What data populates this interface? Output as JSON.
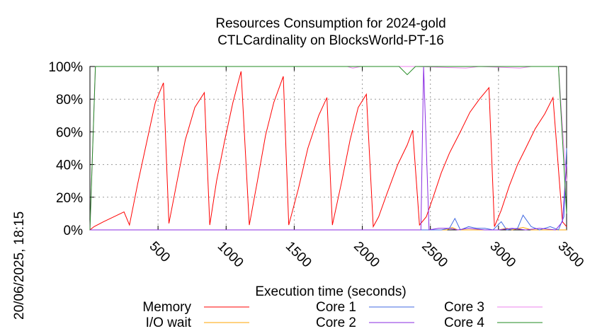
{
  "title_line1": "Resources Consumption for 2024-gold",
  "title_line2": "CTLCardinality on BlocksWorld-PT-16",
  "timestamp": "20/06/2025, 18:15",
  "colors": {
    "memory": "#ff0000",
    "io_wait": "#ffa500",
    "core1": "#4169e1",
    "core2": "#8a2be2",
    "core3": "#ee82ee",
    "core4": "#228b22"
  },
  "chart_data": {
    "type": "line",
    "title": "Resources Consumption for 2024-gold\nCTLCardinality on BlocksWorld-PT-16",
    "xlabel": "Execution time (seconds)",
    "ylabel": "",
    "xlim": [
      0,
      3500
    ],
    "ylim": [
      0,
      100
    ],
    "x_ticks": [
      500,
      1000,
      1500,
      2000,
      2500,
      3000,
      3500
    ],
    "y_ticks": [
      0,
      20,
      40,
      60,
      80,
      100
    ],
    "y_tick_labels": [
      "0%",
      "20%",
      "40%",
      "60%",
      "80%",
      "100%"
    ],
    "grid": true,
    "legend_position": "bottom",
    "series": [
      {
        "name": "Memory",
        "color_key": "memory",
        "points": [
          [
            0,
            0
          ],
          [
            30,
            2
          ],
          [
            100,
            5
          ],
          [
            200,
            9
          ],
          [
            250,
            11
          ],
          [
            290,
            3
          ],
          [
            350,
            28
          ],
          [
            420,
            55
          ],
          [
            480,
            78
          ],
          [
            540,
            90
          ],
          [
            580,
            4
          ],
          [
            640,
            30
          ],
          [
            700,
            55
          ],
          [
            770,
            75
          ],
          [
            840,
            84
          ],
          [
            880,
            3
          ],
          [
            930,
            30
          ],
          [
            990,
            55
          ],
          [
            1050,
            78
          ],
          [
            1110,
            97
          ],
          [
            1170,
            3
          ],
          [
            1230,
            30
          ],
          [
            1290,
            58
          ],
          [
            1350,
            78
          ],
          [
            1420,
            94
          ],
          [
            1460,
            3
          ],
          [
            1530,
            25
          ],
          [
            1600,
            50
          ],
          [
            1680,
            70
          ],
          [
            1740,
            81
          ],
          [
            1780,
            3
          ],
          [
            1850,
            30
          ],
          [
            1910,
            55
          ],
          [
            1970,
            75
          ],
          [
            2030,
            83
          ],
          [
            2080,
            2
          ],
          [
            2120,
            8
          ],
          [
            2180,
            22
          ],
          [
            2260,
            40
          ],
          [
            2330,
            52
          ],
          [
            2370,
            61
          ],
          [
            2420,
            3
          ],
          [
            2470,
            8
          ],
          [
            2520,
            20
          ],
          [
            2580,
            35
          ],
          [
            2640,
            47
          ],
          [
            2720,
            60
          ],
          [
            2790,
            72
          ],
          [
            2860,
            80
          ],
          [
            2930,
            87
          ],
          [
            2970,
            2
          ],
          [
            3020,
            12
          ],
          [
            3080,
            27
          ],
          [
            3140,
            40
          ],
          [
            3200,
            50
          ],
          [
            3270,
            62
          ],
          [
            3340,
            71
          ],
          [
            3400,
            81
          ],
          [
            3470,
            5
          ],
          [
            3500,
            2
          ]
        ]
      },
      {
        "name": "I/O wait",
        "color_key": "io_wait",
        "points": [
          [
            0,
            0
          ],
          [
            2500,
            0
          ],
          [
            2620,
            0
          ],
          [
            2660,
            1.5
          ],
          [
            2700,
            0
          ],
          [
            3000,
            0
          ],
          [
            3060,
            1
          ],
          [
            3100,
            0
          ],
          [
            3180,
            1.5
          ],
          [
            3240,
            0
          ],
          [
            3500,
            0
          ]
        ]
      },
      {
        "name": "Core 1",
        "color_key": "core1",
        "points": [
          [
            0,
            0
          ],
          [
            2500,
            0
          ],
          [
            2580,
            0
          ],
          [
            2640,
            1
          ],
          [
            2680,
            7
          ],
          [
            2720,
            0
          ],
          [
            2780,
            2
          ],
          [
            2840,
            1
          ],
          [
            2900,
            1
          ],
          [
            2960,
            0
          ],
          [
            3020,
            5
          ],
          [
            3060,
            0
          ],
          [
            3140,
            1
          ],
          [
            3180,
            9
          ],
          [
            3240,
            2
          ],
          [
            3300,
            0
          ],
          [
            3380,
            2
          ],
          [
            3440,
            0
          ],
          [
            3480,
            8
          ],
          [
            3500,
            50
          ]
        ]
      },
      {
        "name": "Core 2",
        "color_key": "core2",
        "points": [
          [
            0,
            0
          ],
          [
            2430,
            0
          ],
          [
            2450,
            100
          ],
          [
            2490,
            0
          ],
          [
            2560,
            1
          ],
          [
            2640,
            1
          ],
          [
            2700,
            0
          ],
          [
            2780,
            1
          ],
          [
            2900,
            0
          ],
          [
            3000,
            0
          ],
          [
            3100,
            1
          ],
          [
            3200,
            0
          ],
          [
            3300,
            1
          ],
          [
            3420,
            0
          ],
          [
            3470,
            5
          ],
          [
            3490,
            30
          ],
          [
            3500,
            40
          ]
        ]
      },
      {
        "name": "Core 3",
        "color_key": "core3",
        "points": [
          [
            0,
            0
          ],
          [
            40,
            100
          ],
          [
            1890,
            100
          ],
          [
            1930,
            99
          ],
          [
            1990,
            100
          ],
          [
            2400,
            100
          ],
          [
            2760,
            99
          ],
          [
            2860,
            100
          ],
          [
            3160,
            99
          ],
          [
            3240,
            100
          ],
          [
            3440,
            100
          ],
          [
            3480,
            50
          ],
          [
            3500,
            30
          ]
        ]
      },
      {
        "name": "Core 4",
        "color_key": "core4",
        "points": [
          [
            0,
            0
          ],
          [
            40,
            100
          ],
          [
            2270,
            100
          ],
          [
            2330,
            95
          ],
          [
            2390,
            100
          ],
          [
            3440,
            100
          ],
          [
            3480,
            40
          ],
          [
            3500,
            10
          ]
        ]
      }
    ]
  },
  "legend": [
    {
      "label": "Memory",
      "color_key": "memory"
    },
    {
      "label": "I/O wait",
      "color_key": "io_wait"
    },
    {
      "label": "Core 1",
      "color_key": "core1"
    },
    {
      "label": "Core 2",
      "color_key": "core2"
    },
    {
      "label": "Core 3",
      "color_key": "core3"
    },
    {
      "label": "Core 4",
      "color_key": "core4"
    }
  ]
}
